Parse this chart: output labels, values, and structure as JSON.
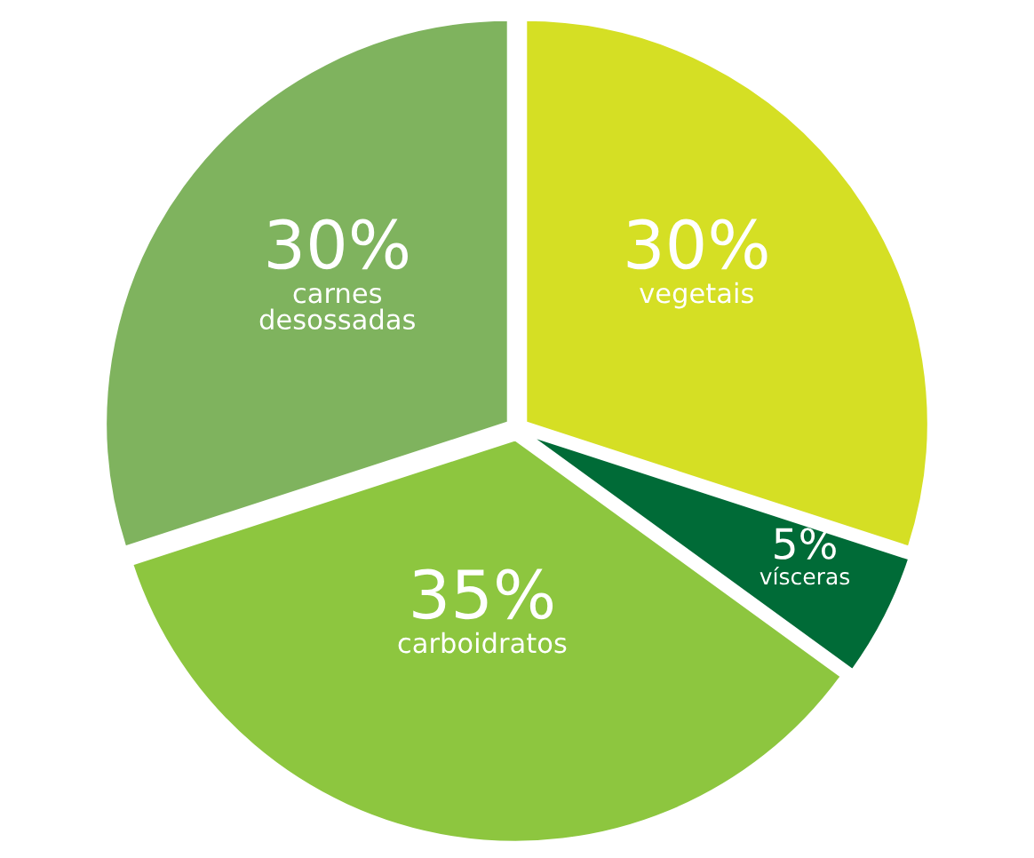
{
  "chart_data": {
    "type": "pie",
    "categories": [
      "vegetais",
      "vísceras",
      "carboidratos",
      "carnes desossadas"
    ],
    "values": [
      30,
      5,
      35,
      30
    ],
    "value_labels": [
      "30%",
      "5%",
      "35%",
      "30%"
    ],
    "colors": [
      "#d5df24",
      "#006b37",
      "#8dc63f",
      "#7fb35e"
    ],
    "legend": false
  }
}
